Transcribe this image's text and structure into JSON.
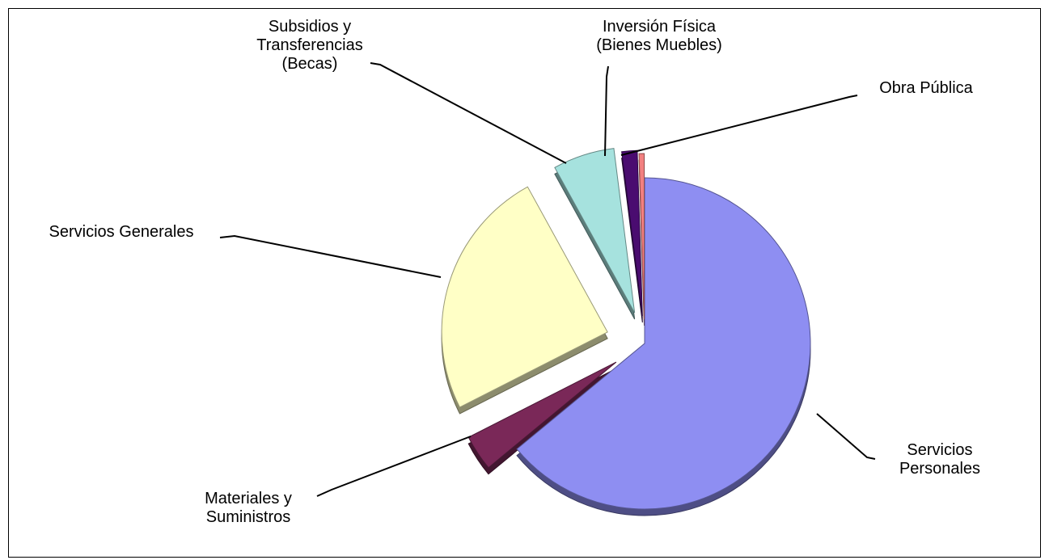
{
  "chart_data": {
    "type": "pie",
    "categories": [
      "Servicios Personales",
      "Materiales y Suministros",
      "Servicios Generales",
      "Subsidios y Transferencias (Becas)",
      "Inversión Física (Bienes Muebles)",
      "Obra Pública"
    ],
    "values": [
      64,
      3.5,
      24.5,
      6,
      1.5,
      0.5
    ],
    "colors": [
      "#8e8ef2",
      "#7a2858",
      "#ffffc6",
      "#a6e2de",
      "#4a0c70",
      "#f28080"
    ]
  }
}
